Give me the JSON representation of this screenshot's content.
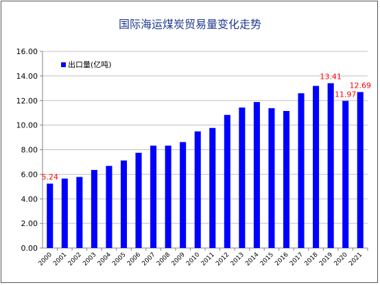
{
  "chart_data": {
    "type": "bar",
    "title": "国际海运煤炭贸易量变化走势",
    "xlabel": "",
    "ylabel": "",
    "categories": [
      "2000",
      "2001",
      "2002",
      "2003",
      "2004",
      "2005",
      "2006",
      "2007",
      "2008",
      "2009",
      "2010",
      "2011",
      "2012",
      "2013",
      "2014",
      "2015",
      "2016",
      "2017",
      "2018",
      "2019",
      "2020",
      "2021"
    ],
    "series": [
      {
        "name": "出口量(亿吨)",
        "color": "#0000ff",
        "values": [
          5.24,
          5.65,
          5.78,
          6.35,
          6.68,
          7.12,
          7.75,
          8.33,
          8.33,
          8.62,
          9.49,
          9.77,
          10.83,
          11.43,
          11.88,
          11.38,
          11.15,
          12.59,
          13.19,
          13.41,
          11.97,
          12.69
        ]
      }
    ],
    "ylim": [
      0,
      16
    ],
    "yticks": [
      "0.00",
      "2.00",
      "4.00",
      "6.00",
      "8.00",
      "10.00",
      "12.00",
      "14.00",
      "16.00"
    ],
    "data_labels": [
      {
        "category": "2000",
        "text": "5.24"
      },
      {
        "category": "2019",
        "text": "13.41"
      },
      {
        "category": "2020",
        "text": "11.97"
      },
      {
        "category": "2021",
        "text": "12.69"
      }
    ],
    "data_label_color": "#ff0000",
    "grid": true,
    "legend_position": "top-left"
  }
}
